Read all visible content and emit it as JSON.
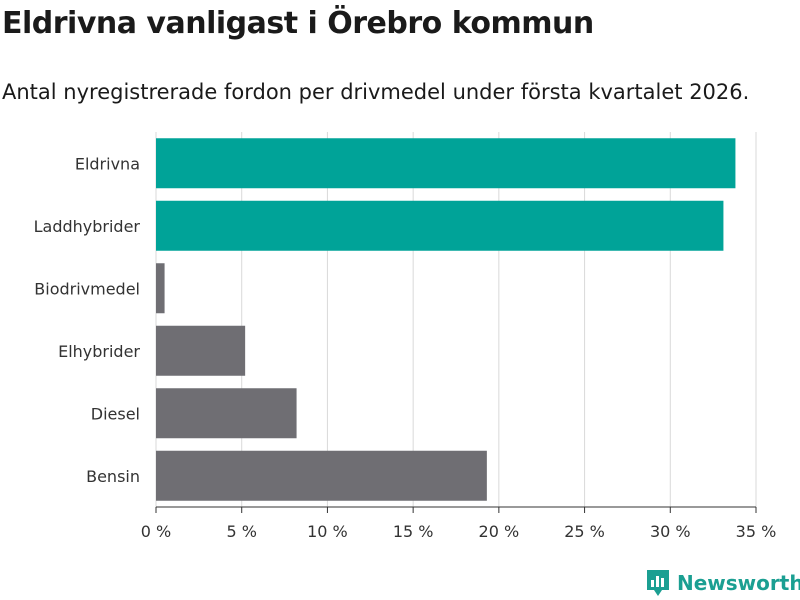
{
  "title": "Eldrivna vanligast i Örebro kommun",
  "subtitle": "Antal nyregistrerade fordon per drivmedel under första kvartalet 2026.",
  "brand": "Newsworthy",
  "colors": {
    "highlight": "#00a398",
    "default": "#6f6e73",
    "grid": "#d9d9d9",
    "brand": "#1b9f92"
  },
  "chart_data": {
    "type": "bar",
    "orientation": "horizontal",
    "title": "Eldrivna vanligast i Örebro kommun",
    "subtitle": "Antal nyregistrerade fordon per drivmedel under första kvartalet 2026.",
    "categories": [
      "Eldrivna",
      "Laddhybrider",
      "Biodrivmedel",
      "Elhybrider",
      "Diesel",
      "Bensin"
    ],
    "values": [
      33.8,
      33.1,
      0.5,
      5.2,
      8.2,
      19.3
    ],
    "highlighted": [
      true,
      true,
      false,
      false,
      false,
      false
    ],
    "unit": "%",
    "xlim": [
      0,
      35
    ],
    "xticks": [
      0,
      5,
      10,
      15,
      20,
      25,
      30,
      35
    ],
    "xtick_labels": [
      "0 %",
      "5 %",
      "10 %",
      "15 %",
      "20 %",
      "25 %",
      "30 %",
      "35 %"
    ],
    "grid": "vertical"
  }
}
